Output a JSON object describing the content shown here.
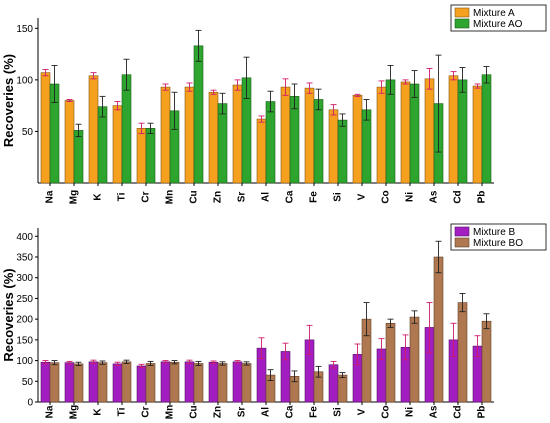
{
  "chart_data": [
    {
      "type": "bar",
      "ylabel": "Recoveries (%)",
      "ylim": [
        0,
        160
      ],
      "yticks": [
        50,
        100,
        150
      ],
      "grid": false,
      "legend_position": "top-right",
      "categories": [
        "Na",
        "Mg",
        "K",
        "Ti",
        "Cr",
        "Mn",
        "Cu",
        "Zn",
        "Sr",
        "Al",
        "Ca",
        "Fe",
        "Si",
        "V",
        "Co",
        "Ni",
        "As",
        "Cd",
        "Pb"
      ],
      "series": [
        {
          "name": "Mixture A",
          "color": "#f5a01e",
          "values": [
            107,
            80,
            104,
            75,
            53,
            93,
            93,
            88,
            95,
            62,
            93,
            92,
            71,
            85,
            93,
            98,
            101,
            104,
            94
          ],
          "errors": [
            3,
            1,
            3,
            4,
            5,
            3,
            4,
            2,
            5,
            3,
            8,
            5,
            5,
            1,
            6,
            2,
            10,
            4,
            2
          ]
        },
        {
          "name": "Mixture AO",
          "color": "#2ea52e",
          "values": [
            96,
            51,
            74,
            105,
            53,
            70,
            133,
            77,
            102,
            79,
            84,
            81,
            61,
            71,
            100,
            96,
            77,
            100,
            105
          ],
          "errors": [
            18,
            6,
            10,
            15,
            5,
            18,
            15,
            10,
            20,
            10,
            12,
            10,
            6,
            10,
            14,
            13,
            47,
            12,
            8
          ]
        }
      ]
    },
    {
      "type": "bar",
      "ylabel": "Recoveries (%)",
      "ylim": [
        0,
        420
      ],
      "yticks": [
        0,
        50,
        100,
        150,
        200,
        250,
        300,
        350,
        400
      ],
      "grid": false,
      "legend_position": "top-right",
      "categories": [
        "Na",
        "Mg",
        "K",
        "Ti",
        "Cr",
        "Mn",
        "Cu",
        "Zn",
        "Sr",
        "Al",
        "Ca",
        "Fe",
        "Si",
        "V",
        "Co",
        "Ni",
        "As",
        "Cd",
        "Pb"
      ],
      "series": [
        {
          "name": "Mixture B",
          "color": "#a21ec0",
          "values": [
            96,
            95,
            97,
            92,
            87,
            97,
            97,
            96,
            97,
            130,
            122,
            150,
            90,
            115,
            128,
            132,
            180,
            150,
            135
          ],
          "errors": [
            4,
            3,
            4,
            4,
            4,
            3,
            4,
            3,
            3,
            25,
            20,
            35,
            8,
            25,
            25,
            30,
            60,
            40,
            25
          ]
        },
        {
          "name": "Mixture BO",
          "color": "#b07850",
          "values": [
            95,
            92,
            95,
            97,
            93,
            96,
            93,
            93,
            93,
            65,
            62,
            73,
            65,
            200,
            190,
            205,
            350,
            240,
            195
          ],
          "errors": [
            5,
            4,
            4,
            4,
            5,
            4,
            5,
            4,
            4,
            13,
            13,
            13,
            6,
            40,
            10,
            15,
            38,
            22,
            18
          ]
        }
      ]
    }
  ]
}
